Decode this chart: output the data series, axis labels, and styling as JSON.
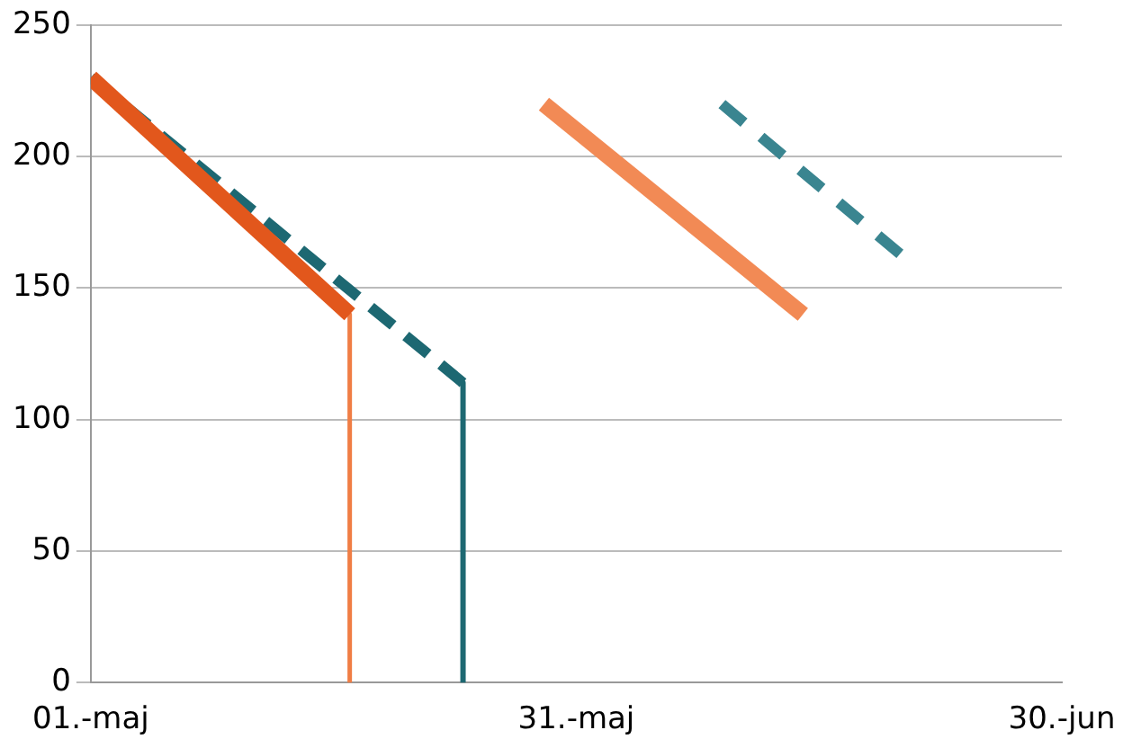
{
  "chart_data": {
    "type": "line",
    "marker": "none",
    "grid": "y",
    "legend": false,
    "xlim": [
      "--05-01",
      "--06-30"
    ],
    "xticks": [
      {
        "value": "--05-01",
        "label": "01.-maj"
      },
      {
        "value": "--05-31",
        "label": "31.-maj"
      },
      {
        "value": "--06-30",
        "label": "30.-jun"
      }
    ],
    "ylim": [
      0,
      250
    ],
    "yticks": [
      0,
      50,
      100,
      150,
      200,
      250
    ],
    "series": [
      {
        "color": "#e2571c",
        "line_style": "solid",
        "x": [
          "--05-01",
          "--05-17"
        ],
        "values": [
          230,
          140
        ]
      },
      {
        "color": "#1d6872",
        "line_style": "dashed",
        "x": [
          "--05-01",
          "--05-24"
        ],
        "values": [
          230,
          114
        ]
      },
      {
        "color": "#f07d44",
        "line_style": "solid",
        "x": [
          "--05-17",
          "--05-17"
        ],
        "values": [
          140,
          0
        ]
      },
      {
        "color": "#1d6872",
        "line_style": "solid",
        "x": [
          "--05-24",
          "--05-24"
        ],
        "values": [
          114,
          0
        ]
      },
      {
        "color": "#f28a55",
        "line_style": "solid",
        "x": [
          "--05-29",
          "--06-14"
        ],
        "values": [
          220,
          140
        ]
      },
      {
        "color": "#3a8590",
        "line_style": "dashed",
        "x": [
          "--06-09",
          "--06-20"
        ],
        "values": [
          220,
          163
        ]
      }
    ]
  }
}
